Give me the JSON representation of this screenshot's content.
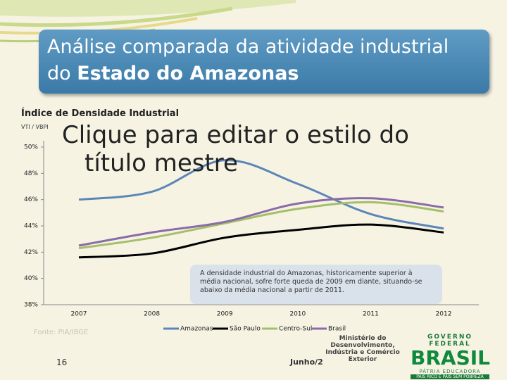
{
  "slide": {
    "title_line1": "Análise comparada da atividade industrial",
    "title_line2_prefix": "do",
    "title_line2_bold": "Estado do Amazonas",
    "placeholder_line1": "Clique para editar o estilo do",
    "placeholder_line2": "título mestre",
    "source": "Fonte: PIA/IBGE",
    "page_number": "16",
    "date": "Junho/2",
    "ministry": "Ministério do Desenvolvimento, Indústria e Comércio Exterior",
    "gov_line1": "GOVERNO FEDERAL",
    "gov_line2": "BRASIL",
    "gov_line3": "PÁTRIA EDUCADORA",
    "gov_line4": "PAÍS RICO É PAÍS SEM POBREZA"
  },
  "chart_data": {
    "type": "line",
    "title": "Índice de Densidade Industrial",
    "y_label": "VTI / VBPI",
    "annotation": "A densidade industrial do Amazonas, historicamente superior à média nacional, sofre forte queda de 2009 em diante, situando-se abaixo da média nacional a partir de 2011.",
    "categories": [
      "2007",
      "2008",
      "2009",
      "2010",
      "2011",
      "2012"
    ],
    "series": [
      {
        "name": "Amazonas",
        "color": "#5b86b8",
        "values": [
          46.0,
          46.6,
          49.0,
          47.2,
          44.9,
          43.8
        ]
      },
      {
        "name": "São Paulo",
        "color": "#000000",
        "values": [
          41.6,
          41.9,
          43.1,
          43.7,
          44.1,
          43.5
        ]
      },
      {
        "name": "Centro-Sul",
        "color": "#a3bf6a",
        "values": [
          42.3,
          43.1,
          44.2,
          45.3,
          45.8,
          45.1
        ]
      },
      {
        "name": "Brasil",
        "color": "#8b6ba8",
        "values": [
          42.5,
          43.5,
          44.3,
          45.7,
          46.1,
          45.4
        ]
      }
    ],
    "ylim": [
      38,
      50
    ],
    "yticks": [
      {
        "value": 38,
        "label": "38%"
      },
      {
        "value": 40,
        "label": "40%"
      },
      {
        "value": 42,
        "label": "42%"
      },
      {
        "value": 44,
        "label": "44%"
      },
      {
        "value": 46,
        "label": "46%"
      },
      {
        "value": 48,
        "label": "48%"
      },
      {
        "value": 50,
        "label": "50%"
      }
    ],
    "grid": false,
    "smooth": true
  }
}
